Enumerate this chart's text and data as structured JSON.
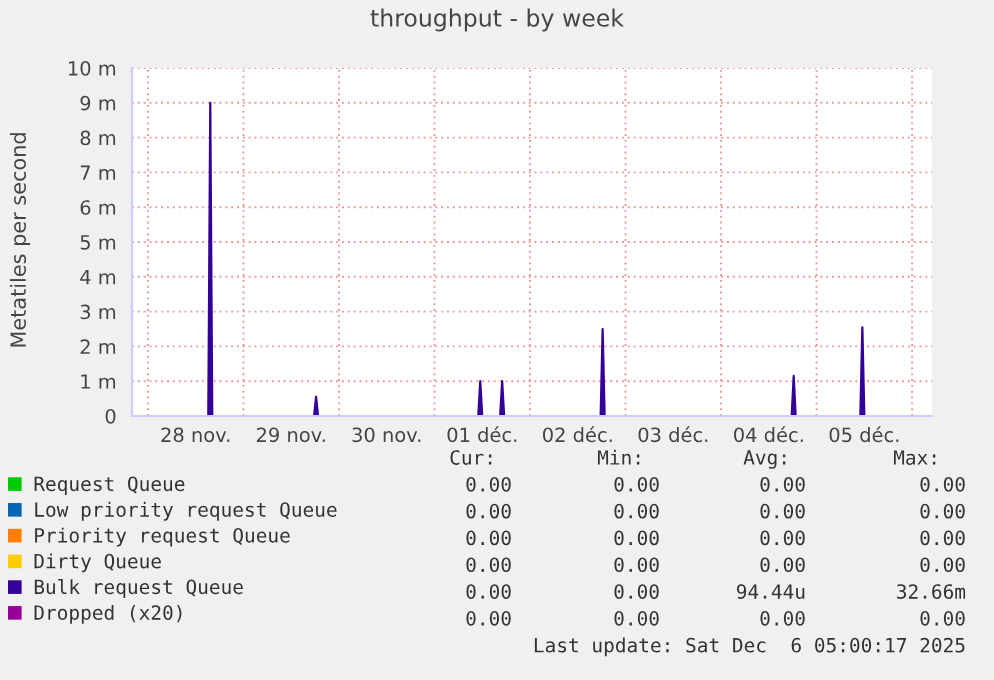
{
  "chart_data": {
    "type": "area",
    "title": "throughput - by week",
    "ylabel": "Metatiles per second",
    "xlim": [
      "2025-11-27T20:00",
      "2025-12-06T05:00"
    ],
    "xticks": [
      {
        "value": "2025-11-28T00:00",
        "label": null
      },
      {
        "value": "2025-11-28T12:00",
        "label": "28 nov."
      },
      {
        "value": "2025-11-29T00:00",
        "label": null
      },
      {
        "value": "2025-11-29T12:00",
        "label": "29 nov."
      },
      {
        "value": "2025-11-30T00:00",
        "label": null
      },
      {
        "value": "2025-11-30T12:00",
        "label": "30 nov."
      },
      {
        "value": "2025-12-01T00:00",
        "label": null
      },
      {
        "value": "2025-12-01T12:00",
        "label": "01 déc."
      },
      {
        "value": "2025-12-02T00:00",
        "label": null
      },
      {
        "value": "2025-12-02T12:00",
        "label": "02 déc."
      },
      {
        "value": "2025-12-03T00:00",
        "label": null
      },
      {
        "value": "2025-12-03T12:00",
        "label": "03 déc."
      },
      {
        "value": "2025-12-04T00:00",
        "label": null
      },
      {
        "value": "2025-12-04T12:00",
        "label": "04 déc."
      },
      {
        "value": "2025-12-05T00:00",
        "label": null
      },
      {
        "value": "2025-12-05T12:00",
        "label": "05 déc."
      },
      {
        "value": "2025-12-06T00:00",
        "label": null
      }
    ],
    "ylim": [
      0,
      10
    ],
    "yticks": [
      0,
      {
        "value": 1,
        "label": "1 m"
      },
      {
        "value": 2,
        "label": "2 m"
      },
      {
        "value": 3,
        "label": "3 m"
      },
      {
        "value": 4,
        "label": "4 m"
      },
      {
        "value": 5,
        "label": "5 m"
      },
      {
        "value": 6,
        "label": "6 m"
      },
      {
        "value": 7,
        "label": "7 m"
      },
      {
        "value": 8,
        "label": "8 m"
      },
      {
        "value": 9,
        "label": "9 m"
      },
      {
        "value": 10,
        "label": "10 m"
      }
    ],
    "grid": true,
    "legend": "bottom",
    "series": [
      {
        "name": "Request Queue",
        "color": "#00cc00",
        "type": "line",
        "values": [
          null,
          null
        ]
      },
      {
        "name": "Low priority request Queue",
        "color": "#0066b3",
        "type": "line",
        "values": [
          null,
          null
        ]
      },
      {
        "name": "Priority request Queue",
        "color": "#ff8000",
        "type": "line",
        "values": [
          null,
          null
        ]
      },
      {
        "name": "Dirty Queue",
        "color": "#ffcc00",
        "type": "line",
        "values": [
          null,
          null
        ]
      },
      {
        "name": "Bulk request Queue",
        "color": "#330099",
        "x": [
          "2025-11-27T20:00",
          "2025-11-28T15:10",
          "2025-11-28T15:40",
          "2025-11-28T16:10",
          "2025-11-29T17:45",
          "2025-11-29T18:15",
          "2025-11-29T18:45",
          "2025-12-01T11:00",
          "2025-12-01T11:30",
          "2025-12-01T12:00",
          "2025-12-01T16:30",
          "2025-12-01T17:00",
          "2025-12-01T17:30",
          "2025-12-02T17:45",
          "2025-12-02T18:15",
          "2025-12-02T18:45",
          "2025-12-04T17:45",
          "2025-12-04T18:15",
          "2025-12-04T18:45",
          "2025-12-05T11:00",
          "2025-12-05T11:30",
          "2025-12-05T12:00",
          "2025-12-06T05:00"
        ],
        "values": [
          0,
          0,
          9.0,
          0,
          0,
          0.55,
          0,
          0,
          1.0,
          0,
          0,
          1.0,
          0,
          0,
          2.5,
          0,
          0,
          1.15,
          0,
          0,
          2.55,
          0,
          0
        ]
      },
      {
        "name": "Dropped (x20)",
        "color": "#990099",
        "type": "line",
        "values": [
          null,
          null
        ]
      }
    ],
    "annotations": [
      "Cur:",
      "Min:",
      "Avg:",
      "Max:",
      "0.00",
      "0.00",
      "0.00",
      "0.00",
      "0.00",
      "0.00",
      "0.00",
      "0.00",
      "0.00",
      "0.00",
      "0.00",
      "0.00",
      "0.00",
      "0.00",
      "0.00",
      "0.00",
      "0.00",
      "0.00",
      "94.44u",
      "32.66m",
      "0.00",
      "0.00",
      "0.00",
      "0.00",
      "Last update: Sat Dec  6 05:00:17 2025"
    ]
  }
}
